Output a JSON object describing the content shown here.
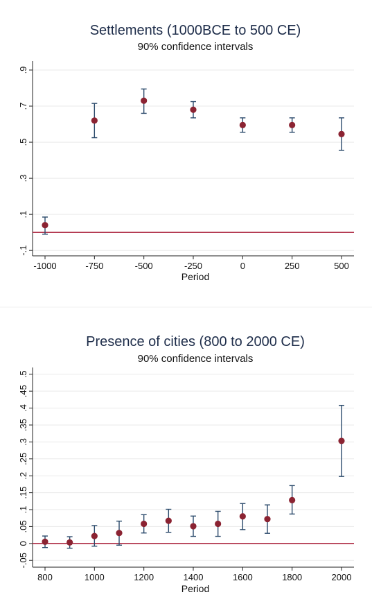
{
  "chart_data": [
    {
      "type": "scatter",
      "title": "Settlements (1000BCE to 500 CE)",
      "subtitle": "90% confidence intervals",
      "xlabel": "Period",
      "ylabel": "",
      "xlim": [
        -1000,
        500
      ],
      "ylim": [
        -0.13,
        0.95
      ],
      "xticks": [
        -1000,
        -750,
        -500,
        -250,
        0,
        250,
        500
      ],
      "xtick_labels": [
        "-1000",
        "-750",
        "-500",
        "-250",
        "0",
        "250",
        "500"
      ],
      "yticks": [
        -0.1,
        0.1,
        0.3,
        0.5,
        0.7,
        0.9
      ],
      "ytick_labels": [
        "-.1",
        ".1",
        ".3",
        ".5",
        ".7",
        ".9"
      ],
      "reference_line": 0,
      "grid": true,
      "x": [
        -1000,
        -750,
        -500,
        -250,
        0,
        250,
        500
      ],
      "estimate": [
        0.04,
        0.62,
        0.73,
        0.68,
        0.595,
        0.595,
        0.545
      ],
      "ci_low": [
        -0.01,
        0.525,
        0.66,
        0.635,
        0.555,
        0.555,
        0.455
      ],
      "ci_high": [
        0.085,
        0.715,
        0.795,
        0.725,
        0.635,
        0.635,
        0.635
      ],
      "colors": {
        "point": "#8b2332",
        "ci": "#2b4a6b",
        "reference": "#b03048"
      }
    },
    {
      "type": "scatter",
      "title": "Presence of cities (800 to 2000 CE)",
      "subtitle": "90% confidence intervals",
      "xlabel": "Period",
      "ylabel": "",
      "xlim": [
        800,
        2000
      ],
      "ylim": [
        -0.07,
        0.52
      ],
      "xticks": [
        800,
        1000,
        1200,
        1400,
        1600,
        1800,
        2000
      ],
      "xtick_labels": [
        "800",
        "1000",
        "1200",
        "1400",
        "1600",
        "1800",
        "2000"
      ],
      "yticks": [
        -0.05,
        0,
        0.05,
        0.1,
        0.15,
        0.2,
        0.25,
        0.3,
        0.35,
        0.4,
        0.45,
        0.5
      ],
      "ytick_labels": [
        "-.05",
        "0",
        ".05",
        ".1",
        ".15",
        ".2",
        ".25",
        ".3",
        ".35",
        ".4",
        ".45",
        ".5"
      ],
      "reference_line": 0,
      "grid": true,
      "x": [
        800,
        900,
        1000,
        1100,
        1200,
        1300,
        1400,
        1500,
        1600,
        1700,
        1800,
        2000
      ],
      "estimate": [
        0.005,
        0.003,
        0.022,
        0.031,
        0.058,
        0.067,
        0.051,
        0.058,
        0.08,
        0.072,
        0.128,
        0.303
      ],
      "ci_low": [
        -0.012,
        -0.014,
        -0.008,
        -0.005,
        0.031,
        0.033,
        0.021,
        0.021,
        0.041,
        0.03,
        0.087,
        0.198
      ],
      "ci_high": [
        0.022,
        0.02,
        0.053,
        0.066,
        0.085,
        0.101,
        0.081,
        0.095,
        0.118,
        0.114,
        0.171,
        0.408
      ],
      "colors": {
        "point": "#8b2332",
        "ci": "#2b4a6b",
        "reference": "#b03048"
      }
    }
  ]
}
